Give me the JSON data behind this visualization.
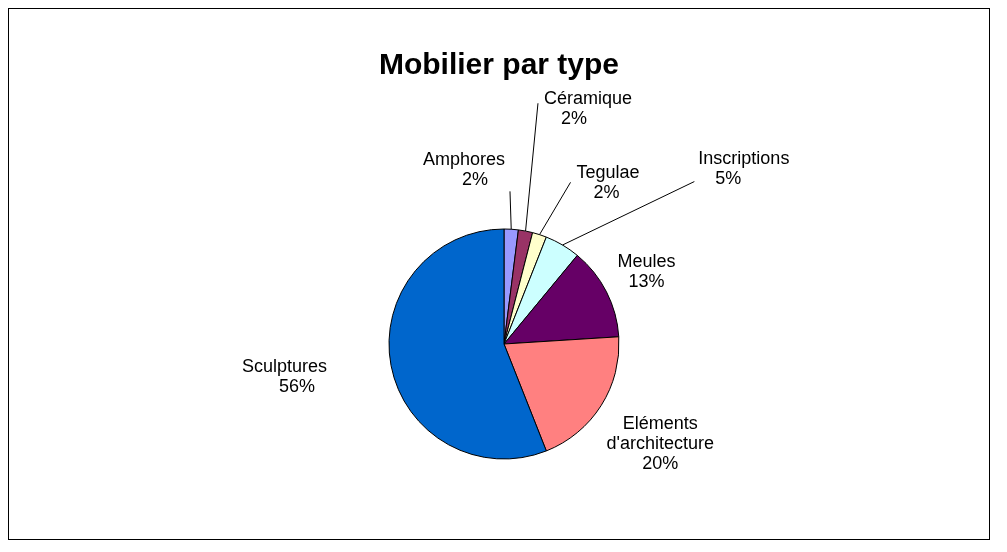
{
  "chart_data": {
    "type": "pie",
    "title": "Mobilier par type",
    "categories": [
      "Amphores",
      "Céramique",
      "Tegulae",
      "Inscriptions",
      "Meules",
      "Eléments d'architecture",
      "Sculptures"
    ],
    "values": [
      2,
      2,
      2,
      5,
      13,
      20,
      56
    ],
    "value_labels": [
      "2%",
      "2%",
      "2%",
      "5%",
      "13%",
      "20%",
      "56%"
    ],
    "colors": [
      "#9999ff",
      "#993366",
      "#ffffcc",
      "#ccffff",
      "#660066",
      "#ff8080",
      "#0066cc"
    ]
  }
}
